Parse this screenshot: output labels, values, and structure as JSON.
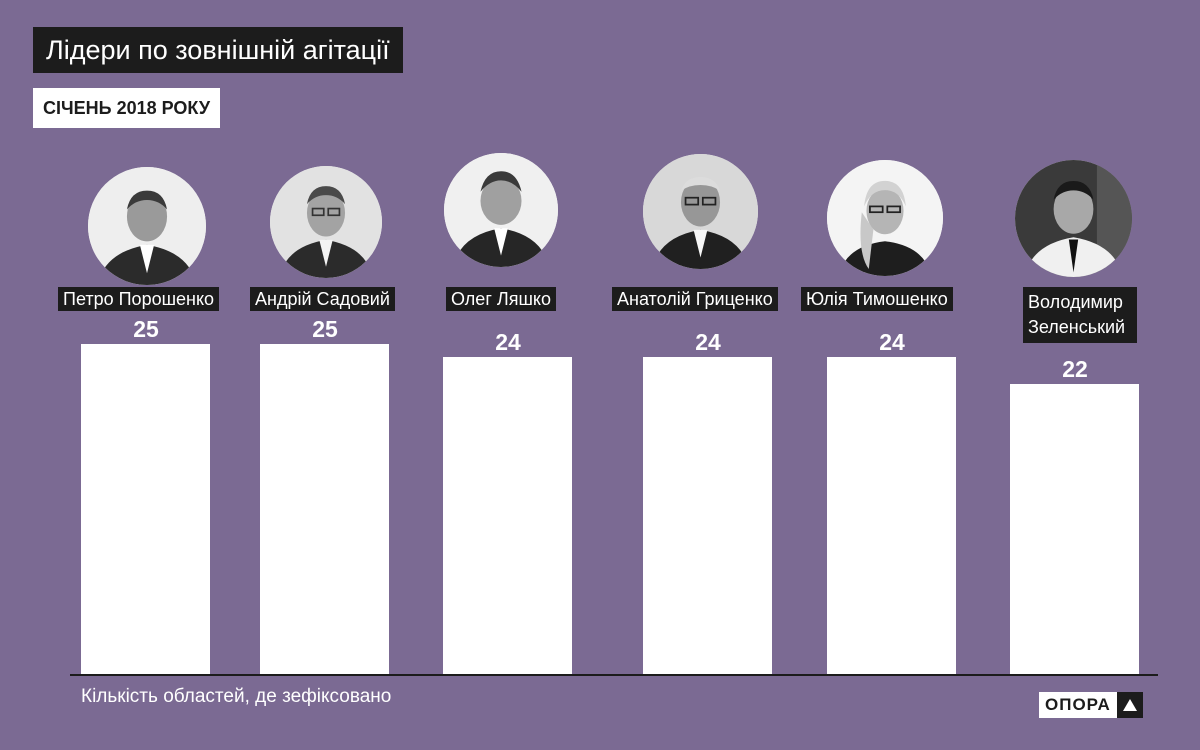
{
  "header": {
    "title": "Лідери по зовнішній агітації",
    "subtitle": "СІЧЕНЬ 2018 РОКУ"
  },
  "footer": {
    "note": "Кількість областей, де зефіксовано",
    "logo_text": "ОПОРА"
  },
  "chart_data": {
    "type": "bar",
    "categories": [
      "Петро Порошенко",
      "Андрій Садовий",
      "Олег Ляшко",
      "Анатолій Гриценко",
      "Юлія Тимошенко",
      "Володимир Зеленський"
    ],
    "values": [
      25,
      25,
      24,
      24,
      24,
      22
    ],
    "value_labels": [
      "25",
      "25",
      "24",
      "24",
      "24",
      "22"
    ],
    "title": "Лідери по зовнішній агітації",
    "subtitle": "СІЧЕНЬ 2018 РОКУ",
    "xlabel": "",
    "ylabel": "",
    "ylim": [
      0,
      25
    ],
    "grid": false,
    "legend": "none",
    "colors": {
      "background": "#7b6a93",
      "bar": "#ffffff",
      "label_bg": "#1c1c1c",
      "text": "#ffffff"
    }
  },
  "candidates": [
    {
      "name": "Петро Порошенко",
      "photo_icon": "portrait-photo"
    },
    {
      "name": "Андрій Садовий",
      "photo_icon": "portrait-photo"
    },
    {
      "name": "Олег Ляшко",
      "photo_icon": "portrait-photo"
    },
    {
      "name": "Анатолій Гриценко",
      "photo_icon": "portrait-photo"
    },
    {
      "name": "Юлія Тимошенко",
      "photo_icon": "portrait-photo"
    },
    {
      "name_lines": [
        "Володимир",
        "Зеленський"
      ],
      "photo_icon": "portrait-photo"
    }
  ]
}
